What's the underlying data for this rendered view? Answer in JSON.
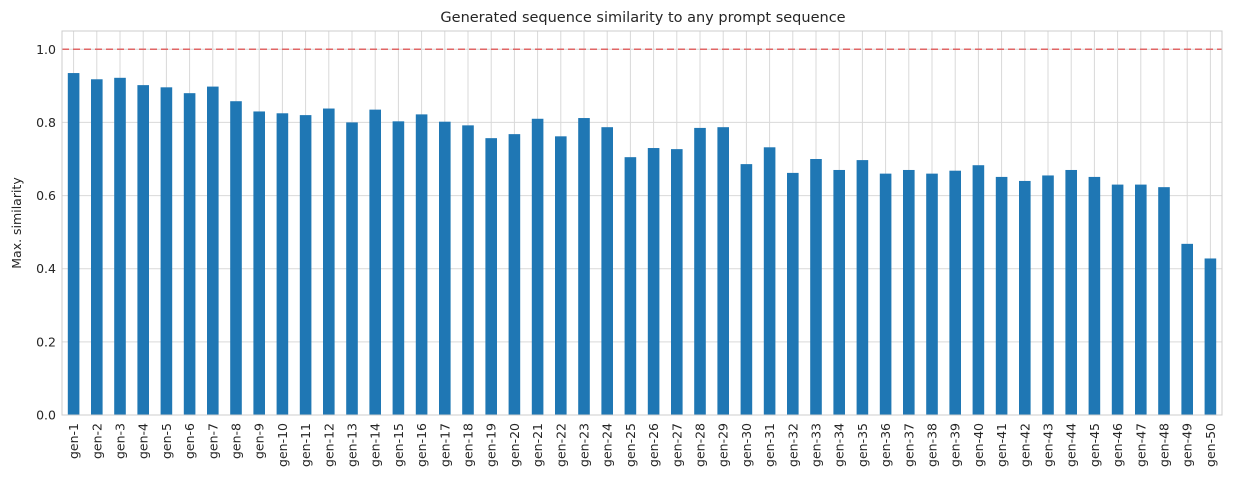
{
  "chart_data": {
    "type": "bar",
    "title": "Generated sequence similarity to any prompt sequence",
    "xlabel": "",
    "ylabel": "Max. similarity",
    "ylim": [
      0,
      1.05
    ],
    "yticks": [
      0.0,
      0.2,
      0.4,
      0.6,
      0.8,
      1.0
    ],
    "ytick_labels": [
      "0.0",
      "0.2",
      "0.4",
      "0.6",
      "0.8",
      "1.0"
    ],
    "grid": true,
    "reference_line": {
      "y": 1.0,
      "style": "dashed",
      "color": "#e06666"
    },
    "bar_color": "#1f77b4",
    "categories": [
      "gen-1",
      "gen-2",
      "gen-3",
      "gen-4",
      "gen-5",
      "gen-6",
      "gen-7",
      "gen-8",
      "gen-9",
      "gen-10",
      "gen-11",
      "gen-12",
      "gen-13",
      "gen-14",
      "gen-15",
      "gen-16",
      "gen-17",
      "gen-18",
      "gen-19",
      "gen-20",
      "gen-21",
      "gen-22",
      "gen-23",
      "gen-24",
      "gen-25",
      "gen-26",
      "gen-27",
      "gen-28",
      "gen-29",
      "gen-30",
      "gen-31",
      "gen-32",
      "gen-33",
      "gen-34",
      "gen-35",
      "gen-36",
      "gen-37",
      "gen-38",
      "gen-39",
      "gen-40",
      "gen-41",
      "gen-42",
      "gen-43",
      "gen-44",
      "gen-45",
      "gen-46",
      "gen-47",
      "gen-48",
      "gen-49",
      "gen-50"
    ],
    "values": [
      0.935,
      0.918,
      0.922,
      0.902,
      0.896,
      0.88,
      0.898,
      0.858,
      0.83,
      0.825,
      0.82,
      0.838,
      0.8,
      0.835,
      0.803,
      0.822,
      0.802,
      0.792,
      0.757,
      0.768,
      0.81,
      0.762,
      0.812,
      0.787,
      0.705,
      0.73,
      0.727,
      0.785,
      0.787,
      0.686,
      0.732,
      0.662,
      0.7,
      0.67,
      0.697,
      0.66,
      0.67,
      0.66,
      0.668,
      0.683,
      0.651,
      0.64,
      0.655,
      0.67,
      0.651,
      0.63,
      0.63,
      0.623,
      0.468,
      0.428
    ]
  }
}
